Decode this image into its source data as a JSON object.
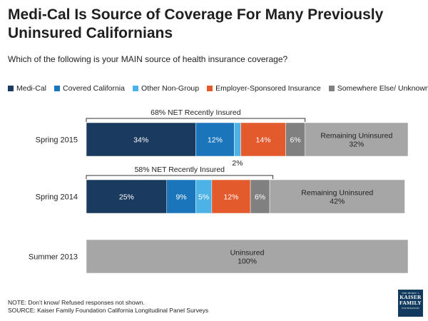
{
  "title": "Medi-Cal Is Source of Coverage For Many Previously Uninsured Californians",
  "subtitle": "Which of the following is your MAIN source of health insurance coverage?",
  "footnote": {
    "note": "NOTE: Don’t know/ Refused responses not shown.",
    "source": "SOURCE: Kaiser Family Foundation California Longitudinal Panel Surveys"
  },
  "logo": {
    "top": "THE HENRY J.",
    "line1": "KAISER",
    "line2": "FAMILY",
    "bottom": "FOUNDATION"
  },
  "legend": [
    {
      "label": "Medi-Cal",
      "color": "#1b3a5f"
    },
    {
      "label": "Covered California",
      "color": "#1a75bb"
    },
    {
      "label": "Other Non-Group",
      "color": "#4db3e6"
    },
    {
      "label": "Employer-Sponsored Insurance",
      "color": "#e35b2d"
    },
    {
      "label": "Somewhere Else/ Unknown",
      "color": "#808080"
    }
  ],
  "chart_data": {
    "type": "bar",
    "orientation": "horizontal",
    "stacked": true,
    "xlim": [
      0,
      100
    ],
    "categories": [
      "Spring 2015",
      "Spring 2014",
      "Summer 2013"
    ],
    "series": [
      {
        "name": "Medi-Cal",
        "values": [
          34,
          25,
          0
        ],
        "labels": [
          "34%",
          "25%",
          ""
        ],
        "color": "#1b3a5f"
      },
      {
        "name": "Covered California",
        "values": [
          12,
          9,
          0
        ],
        "labels": [
          "12%",
          "9%",
          ""
        ],
        "color": "#1a75bb"
      },
      {
        "name": "Other Non-Group",
        "values": [
          2,
          5,
          0
        ],
        "labels": [
          "2%",
          "5%",
          ""
        ],
        "color": "#4db3e6"
      },
      {
        "name": "Employer-Sponsored Insurance",
        "values": [
          14,
          12,
          0
        ],
        "labels": [
          "14%",
          "12%",
          ""
        ],
        "color": "#e35b2d"
      },
      {
        "name": "Somewhere Else/ Unknown",
        "values": [
          6,
          6,
          0
        ],
        "labels": [
          "6%",
          "6%",
          ""
        ],
        "color": "#808080"
      },
      {
        "name": "Uninsured",
        "values": [
          32,
          42,
          100
        ],
        "labels": [
          "Remaining Uninsured\n32%",
          "Remaining Uninsured\n42%",
          "Uninsured\n100%"
        ],
        "color": "#a6a6a6",
        "in_legend": false
      }
    ],
    "outside_labels": [
      {
        "category": "Spring 2015",
        "series": "Other Non-Group",
        "text": "2%"
      }
    ],
    "brackets": [
      {
        "category": "Spring 2015",
        "text": "68% NET Recently Insured",
        "value": 68
      },
      {
        "category": "Spring 2014",
        "text": "58% NET Recently Insured",
        "value": 58
      }
    ]
  }
}
